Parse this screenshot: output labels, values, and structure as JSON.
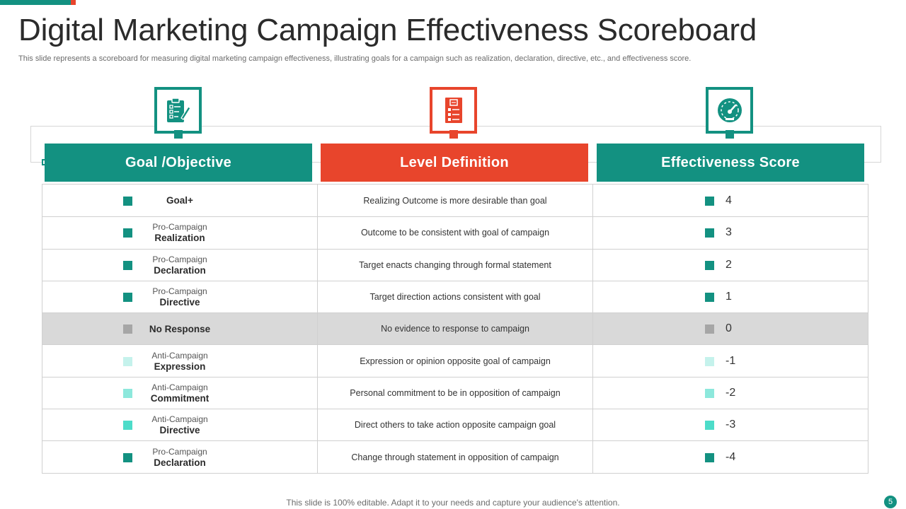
{
  "header": {
    "title": "Digital Marketing Campaign Effectiveness Scoreboard",
    "subtitle": "This slide represents a scoreboard for measuring digital marketing campaign effectiveness, illustrating goals for a campaign such as realization, declaration, directive, etc., and effectiveness score."
  },
  "colors": {
    "teal": "#139181",
    "red": "#e8452c",
    "gray": "#a6a6a6",
    "light_teal_1": "#c5f2ec",
    "light_teal_2": "#8de8dc",
    "light_teal_3": "#4ddcc9"
  },
  "columns": {
    "goal": {
      "label": "Goal /Objective",
      "icon": "checklist-clipboard-icon"
    },
    "level": {
      "label": "Level Definition",
      "icon": "document-form-icon"
    },
    "score": {
      "label": "Effectiveness  Score",
      "icon": "speedometer-icon"
    }
  },
  "rows": [
    {
      "goal_sub": "",
      "goal_main": "Goal+",
      "definition": "Realizing Outcome is more desirable than goal",
      "score": "4",
      "color": "#139181",
      "highlight": false
    },
    {
      "goal_sub": "Pro-Campaign",
      "goal_main": "Realization",
      "definition": "Outcome to be consistent with goal of campaign",
      "score": "3",
      "color": "#139181",
      "highlight": false
    },
    {
      "goal_sub": "Pro-Campaign",
      "goal_main": "Declaration",
      "definition": "Target  enacts changing through formal  statement",
      "score": "2",
      "color": "#139181",
      "highlight": false
    },
    {
      "goal_sub": "Pro-Campaign",
      "goal_main": "Directive",
      "definition": "Target  direction actions consistent with goal",
      "score": "1",
      "color": "#139181",
      "highlight": false
    },
    {
      "goal_sub": "",
      "goal_main": "No Response",
      "definition": "No evidence  to response to campaign",
      "score": "0",
      "color": "#a6a6a6",
      "highlight": true
    },
    {
      "goal_sub": "Anti-Campaign",
      "goal_main": "Expression",
      "definition": "Expression or opinion opposite goal of campaign",
      "score": "-1",
      "color": "#c5f2ec",
      "highlight": false
    },
    {
      "goal_sub": "Anti-Campaign",
      "goal_main": "Commitment",
      "definition": "Personal commitment to be in opposition of campaign",
      "score": "-2",
      "color": "#8de8dc",
      "highlight": false
    },
    {
      "goal_sub": "Anti-Campaign",
      "goal_main": "Directive",
      "definition": "Direct others to take action opposite campaign goal",
      "score": "-3",
      "color": "#4ddcc9",
      "highlight": false
    },
    {
      "goal_sub": "Pro-Campaign",
      "goal_main": "Declaration",
      "definition": "Change through statement in opposition of campaign",
      "score": "-4",
      "color": "#139181",
      "highlight": false
    }
  ],
  "footer": {
    "text": "This slide is 100% editable. Adapt it to your needs and capture your audience's attention.",
    "page_number": "5"
  }
}
